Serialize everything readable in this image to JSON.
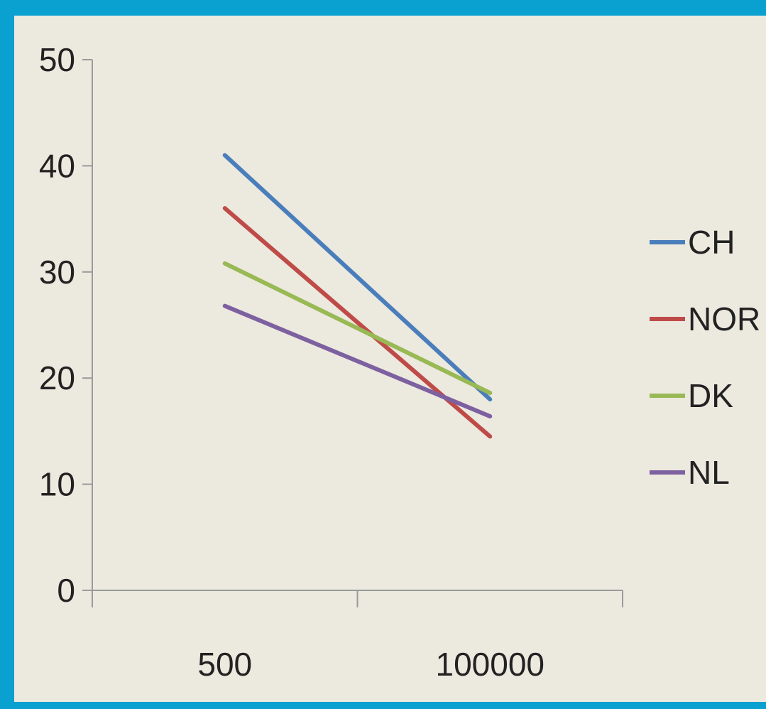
{
  "colors": {
    "frame": "#0aa0cf",
    "background": "#ece9df",
    "axis": "#9a9a9a"
  },
  "chart_data": {
    "type": "line",
    "title": "",
    "xlabel": "",
    "ylabel": "",
    "categories": [
      "500",
      "100000"
    ],
    "ylim": [
      0,
      50
    ],
    "yticks": [
      0,
      10,
      20,
      30,
      40,
      50
    ],
    "grid": false,
    "legend_position": "right",
    "series": [
      {
        "name": "CH",
        "color": "#4a7ebb",
        "values": [
          41.0,
          18.0
        ]
      },
      {
        "name": "NOR",
        "color": "#be4b48",
        "values": [
          36.0,
          14.5
        ]
      },
      {
        "name": "DK",
        "color": "#98b954",
        "values": [
          30.8,
          18.6
        ]
      },
      {
        "name": "NL",
        "color": "#7d60a0",
        "values": [
          26.8,
          16.4
        ]
      }
    ]
  }
}
